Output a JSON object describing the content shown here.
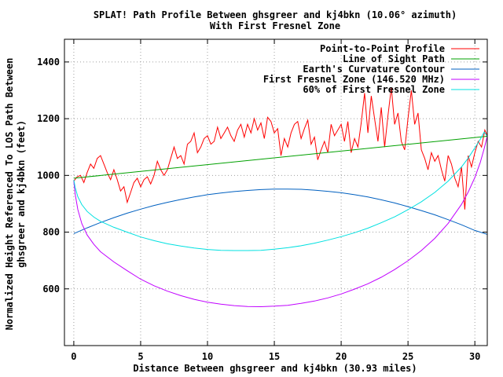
{
  "chart_data": {
    "type": "line",
    "title": "SPLAT! Path Profile Between ghsgreer and kj4bkn (10.06° azimuth)",
    "subtitle": "With First Fresnel Zone",
    "xlabel": "Distance Between ghsgreer and kj4bkn (30.93 miles)",
    "ylabel_line1": "Normalized Height Referenced To LOS Path Between",
    "ylabel_line2": "ghsgreer and kj4bkn (feet)",
    "xlim": [
      -0.7,
      30.93
    ],
    "ylim": [
      400,
      1480
    ],
    "xticks": [
      0,
      5,
      10,
      15,
      20,
      25,
      30
    ],
    "yticks": [
      600,
      800,
      1000,
      1200,
      1400
    ],
    "xtick_labels": [
      "0",
      "5",
      "10",
      "15",
      "20",
      "25",
      "30"
    ],
    "ytick_labels": [
      "600",
      "800",
      "1000",
      "1200",
      "1400"
    ],
    "grid": true,
    "legend_position": "top-right",
    "total_distance": 30.93,
    "series": [
      {
        "name": "Point-to-Point Profile",
        "color": "#ff0000",
        "x": [
          0,
          0.25,
          0.5,
          0.75,
          1.0,
          1.25,
          1.5,
          1.75,
          2.0,
          2.25,
          2.5,
          2.75,
          3.0,
          3.25,
          3.5,
          3.75,
          4.0,
          4.25,
          4.5,
          4.75,
          5.0,
          5.25,
          5.5,
          5.75,
          6.0,
          6.25,
          6.5,
          6.75,
          7.0,
          7.25,
          7.5,
          7.75,
          8.0,
          8.25,
          8.5,
          8.75,
          9.0,
          9.25,
          9.5,
          9.75,
          10.0,
          10.25,
          10.5,
          10.75,
          11.0,
          11.25,
          11.5,
          11.75,
          12.0,
          12.25,
          12.5,
          12.75,
          13.0,
          13.25,
          13.5,
          13.75,
          14.0,
          14.25,
          14.5,
          14.75,
          15.0,
          15.25,
          15.5,
          15.75,
          16.0,
          16.25,
          16.5,
          16.75,
          17.0,
          17.25,
          17.5,
          17.75,
          18.0,
          18.25,
          18.5,
          18.75,
          19.0,
          19.25,
          19.5,
          19.75,
          20.0,
          20.25,
          20.5,
          20.75,
          21.0,
          21.25,
          21.5,
          21.75,
          22.0,
          22.25,
          22.5,
          22.75,
          23.0,
          23.25,
          23.5,
          23.75,
          24.0,
          24.25,
          24.5,
          24.75,
          25.0,
          25.25,
          25.5,
          25.75,
          26.0,
          26.25,
          26.5,
          26.75,
          27.0,
          27.25,
          27.5,
          27.75,
          28.0,
          28.25,
          28.5,
          28.75,
          29.0,
          29.25,
          29.5,
          29.75,
          30.0,
          30.25,
          30.5,
          30.75,
          30.93
        ],
        "y": [
          980,
          995,
          1000,
          975,
          1010,
          1040,
          1025,
          1060,
          1070,
          1040,
          1010,
          985,
          1020,
          985,
          945,
          960,
          905,
          940,
          975,
          990,
          960,
          985,
          995,
          970,
          1000,
          1050,
          1020,
          1000,
          1020,
          1060,
          1100,
          1060,
          1070,
          1040,
          1110,
          1120,
          1150,
          1080,
          1100,
          1130,
          1140,
          1110,
          1120,
          1170,
          1130,
          1150,
          1170,
          1140,
          1120,
          1160,
          1180,
          1135,
          1180,
          1150,
          1200,
          1160,
          1185,
          1130,
          1205,
          1190,
          1150,
          1165,
          1070,
          1130,
          1100,
          1150,
          1180,
          1190,
          1130,
          1165,
          1195,
          1110,
          1135,
          1055,
          1090,
          1120,
          1080,
          1180,
          1140,
          1160,
          1180,
          1120,
          1190,
          1080,
          1130,
          1100,
          1185,
          1290,
          1150,
          1280,
          1200,
          1120,
          1240,
          1100,
          1210,
          1310,
          1180,
          1220,
          1120,
          1090,
          1200,
          1300,
          1180,
          1220,
          1090,
          1060,
          1020,
          1080,
          1050,
          1070,
          1020,
          980,
          1070,
          1040,
          990,
          960,
          1030,
          880,
          1070,
          1030,
          1080,
          1120,
          1100,
          1160,
          1140
        ]
      },
      {
        "name": "Line of Sight Path",
        "color": "#00a000",
        "x": [
          0,
          30.93
        ],
        "y": [
          990,
          1138
        ]
      },
      {
        "name": "Earth's Curvature Contour",
        "color": "#0060c0",
        "x": [
          0,
          1,
          2,
          3,
          4,
          5,
          6,
          7,
          8,
          9,
          10,
          11,
          12,
          13,
          14,
          15,
          16,
          17,
          18,
          19,
          20,
          21,
          22,
          23,
          24,
          25,
          26,
          27,
          28,
          29,
          30,
          30.93
        ],
        "y": [
          795,
          815,
          834,
          851,
          867,
          881,
          894,
          905,
          915,
          924,
          932,
          938,
          943,
          947,
          950,
          952,
          952,
          951,
          948,
          944,
          939,
          932,
          924,
          914,
          903,
          890,
          876,
          861,
          844,
          826,
          806,
          792
        ]
      },
      {
        "name": "First Fresnel Zone (146.520 MHz)",
        "color": "#c000ff",
        "x": [
          0,
          0.1,
          0.3,
          0.6,
          1,
          1.5,
          2,
          3,
          4,
          5,
          6,
          7,
          8,
          9,
          10,
          11,
          12,
          13,
          14,
          15,
          16,
          17,
          18,
          19,
          20,
          21,
          22,
          23,
          24,
          25,
          26,
          27,
          28,
          29,
          29.5,
          30,
          30.4,
          30.7,
          30.93
        ],
        "y": [
          980,
          935,
          880,
          830,
          790,
          757,
          731,
          695,
          664,
          634,
          611,
          592,
          576,
          563,
          553,
          546,
          541,
          538,
          537,
          539,
          542,
          549,
          557,
          568,
          582,
          599,
          618,
          641,
          668,
          699,
          735,
          778,
          831,
          898,
          941,
          993,
          1045,
          1095,
          1138
        ]
      },
      {
        "name": "60% of First Fresnel Zone",
        "color": "#00e0e0",
        "x": [
          0,
          0.1,
          0.3,
          0.6,
          1,
          1.5,
          2,
          3,
          4,
          5,
          6,
          7,
          8,
          9,
          10,
          11,
          12,
          13,
          14,
          15,
          16,
          17,
          18,
          19,
          20,
          21,
          22,
          23,
          24,
          25,
          26,
          27,
          28,
          29,
          29.5,
          30,
          30.4,
          30.7,
          30.93
        ],
        "y": [
          985,
          958,
          925,
          897,
          873,
          853,
          838,
          817,
          800,
          783,
          770,
          759,
          751,
          744,
          739,
          736,
          735,
          735,
          736,
          740,
          745,
          752,
          761,
          772,
          784,
          798,
          814,
          833,
          854,
          879,
          907,
          940,
          980,
          1030,
          1061,
          1097,
          1127,
          1153,
          1138
        ]
      }
    ]
  }
}
